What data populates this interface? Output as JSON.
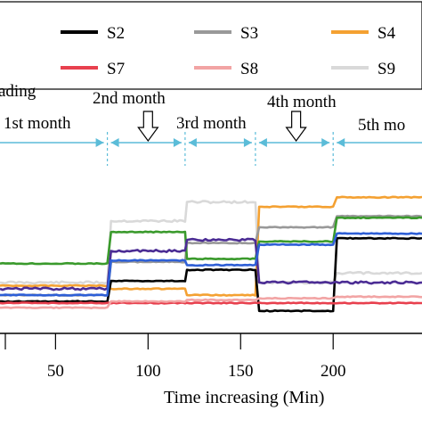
{
  "chart_data": {
    "type": "line",
    "xlabel": "Time increasing (Min)",
    "ylabel": "",
    "xlim": [
      20,
      248
    ],
    "ylim": [
      0,
      1
    ],
    "x_ticks": [
      50,
      100,
      150,
      200
    ],
    "grid": false,
    "legend_placement": "top",
    "legend": [
      {
        "name": "S2",
        "color": "#000000"
      },
      {
        "name": "S3",
        "color": "#999999"
      },
      {
        "name": "S4",
        "color": "#f4a132"
      },
      {
        "name": "S7",
        "color": "#e8404e"
      },
      {
        "name": "S8",
        "color": "#f2a4a4"
      },
      {
        "name": "S9",
        "color": "#d9d9d9"
      }
    ],
    "phases": [
      {
        "label": "ading",
        "x_start": 20,
        "x_end": 78
      },
      {
        "label": "1st month",
        "x_start": 20,
        "x_end": 78
      },
      {
        "label": "2nd month",
        "x_start": 78,
        "x_end": 120
      },
      {
        "label": "3rd month",
        "x_start": 120,
        "x_end": 158
      },
      {
        "label": "4th month",
        "x_start": 158,
        "x_end": 200
      },
      {
        "label": "5th mo",
        "x_start": 200,
        "x_end": 248
      }
    ],
    "phase_boundaries": [
      78,
      120,
      158,
      200
    ],
    "arrow_markers": [
      {
        "x": 100,
        "phase": "2nd month"
      },
      {
        "x": 180,
        "phase": "4th month"
      }
    ],
    "series": [
      {
        "name": "S9",
        "color": "#d9d9d9",
        "x": [
          20,
          78,
          80,
          120,
          121,
          158,
          160,
          200,
          202,
          248
        ],
        "y": [
          0.3,
          0.3,
          0.69,
          0.69,
          0.81,
          0.81,
          0.3,
          0.3,
          0.36,
          0.36
        ]
      },
      {
        "name": "S4",
        "color": "#f4a132",
        "x": [
          20,
          78,
          80,
          120,
          121,
          158,
          160,
          200,
          202,
          248
        ],
        "y": [
          0.28,
          0.28,
          0.26,
          0.26,
          0.22,
          0.22,
          0.78,
          0.78,
          0.84,
          0.84
        ]
      },
      {
        "name": "S3",
        "color": "#999999",
        "x": [
          20,
          78,
          80,
          120,
          121,
          158,
          160,
          200,
          202,
          248
        ],
        "y": [
          0.22,
          0.22,
          0.43,
          0.43,
          0.55,
          0.55,
          0.65,
          0.65,
          0.72,
          0.72
        ]
      },
      {
        "name": "green",
        "color": "#3a9a2c",
        "x": [
          20,
          78,
          80,
          120,
          121,
          158,
          160,
          200,
          202,
          248
        ],
        "y": [
          0.42,
          0.42,
          0.62,
          0.62,
          0.45,
          0.45,
          0.56,
          0.56,
          0.71,
          0.71
        ]
      },
      {
        "name": "S2",
        "color": "#000000",
        "x": [
          20,
          78,
          80,
          120,
          121,
          158,
          160,
          200,
          202,
          248
        ],
        "y": [
          0.18,
          0.18,
          0.31,
          0.31,
          0.38,
          0.38,
          0.12,
          0.12,
          0.58,
          0.58
        ]
      },
      {
        "name": "purple",
        "color": "#4b2c94",
        "x": [
          20,
          78,
          80,
          120,
          121,
          158,
          160,
          200,
          202,
          248
        ],
        "y": [
          0.26,
          0.26,
          0.5,
          0.5,
          0.57,
          0.57,
          0.3,
          0.3,
          0.3,
          0.3
        ]
      },
      {
        "name": "blue",
        "color": "#2e5fd6",
        "x": [
          20,
          78,
          80,
          120,
          121,
          158,
          160,
          200,
          202,
          248
        ],
        "y": [
          0.22,
          0.22,
          0.44,
          0.44,
          0.41,
          0.41,
          0.54,
          0.54,
          0.61,
          0.61
        ]
      },
      {
        "name": "S7",
        "color": "#e8404e",
        "x": [
          20,
          78,
          80,
          120,
          121,
          158,
          160,
          200,
          202,
          248
        ],
        "y": [
          0.17,
          0.17,
          0.17,
          0.17,
          0.17,
          0.17,
          0.17,
          0.17,
          0.17,
          0.17
        ]
      },
      {
        "name": "S8",
        "color": "#f2a4a4",
        "x": [
          20,
          78,
          80,
          120,
          121,
          158,
          160,
          200,
          202,
          248
        ],
        "y": [
          0.14,
          0.14,
          0.18,
          0.18,
          0.19,
          0.19,
          0.2,
          0.2,
          0.21,
          0.21
        ]
      }
    ]
  }
}
